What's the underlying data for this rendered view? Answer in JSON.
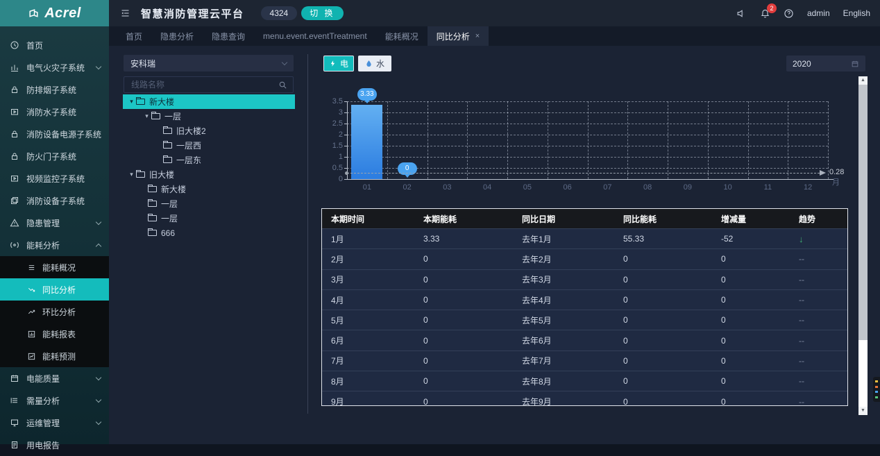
{
  "header": {
    "logo_text": "Acrel",
    "title": "智慧消防管理云平台",
    "badge": "4324",
    "switch_label": "切 换",
    "notification_count": "2",
    "user": "admin",
    "language": "English"
  },
  "tabs": [
    {
      "label": "首页",
      "active": false
    },
    {
      "label": "隐患分析",
      "active": false
    },
    {
      "label": "隐患查询",
      "active": false
    },
    {
      "label": "menu.event.eventTreatment",
      "active": false
    },
    {
      "label": "能耗概况",
      "active": false
    },
    {
      "label": "同比分析",
      "active": true,
      "closable": true
    }
  ],
  "sidebar": {
    "items": [
      {
        "key": "home",
        "label": "首页",
        "icon": "home"
      },
      {
        "key": "electrical-fire",
        "label": "电气火灾子系统",
        "icon": "chart",
        "arrow": "down"
      },
      {
        "key": "smoke-control",
        "label": "防排烟子系统",
        "icon": "lock"
      },
      {
        "key": "fire-water",
        "label": "消防水子系统",
        "icon": "video"
      },
      {
        "key": "fire-power",
        "label": "消防设备电源子系统",
        "icon": "lock"
      },
      {
        "key": "fire-door",
        "label": "防火门子系统",
        "icon": "lock"
      },
      {
        "key": "video-monitor",
        "label": "视频监控子系统",
        "icon": "video"
      },
      {
        "key": "fire-equipment",
        "label": "消防设备子系统",
        "icon": "copy"
      },
      {
        "key": "hazard-mgmt",
        "label": "隐患管理",
        "icon": "warning",
        "arrow": "down"
      },
      {
        "key": "energy-analysis",
        "label": "能耗分析",
        "icon": "energy",
        "arrow": "up",
        "expanded": true,
        "children": [
          {
            "key": "energy-overview",
            "label": "能耗概况",
            "icon": "list"
          },
          {
            "key": "yoy-analysis",
            "label": "同比分析",
            "icon": "trend-down",
            "active": true
          },
          {
            "key": "mom-analysis",
            "label": "环比分析",
            "icon": "trend-up"
          },
          {
            "key": "energy-report",
            "label": "能耗报表",
            "icon": "bar-chart"
          },
          {
            "key": "energy-forecast",
            "label": "能耗预测",
            "icon": "line-chart"
          }
        ]
      },
      {
        "key": "power-quality",
        "label": "电能质量",
        "icon": "calendar",
        "arrow": "down"
      },
      {
        "key": "demand-analysis",
        "label": "需量分析",
        "icon": "rows",
        "arrow": "down"
      },
      {
        "key": "ops-mgmt",
        "label": "运维管理",
        "icon": "monitor",
        "arrow": "down"
      },
      {
        "key": "power-report",
        "label": "用电报告",
        "icon": "report"
      }
    ]
  },
  "tree_panel": {
    "select_value": "安科瑞",
    "search_placeholder": "线路名称",
    "nodes": [
      {
        "label": "新大楼",
        "depth": 0,
        "caret": true,
        "selected": true
      },
      {
        "label": "一层",
        "depth": 1,
        "caret": true
      },
      {
        "label": "旧大楼2",
        "depth": 2
      },
      {
        "label": "一层西",
        "depth": 2
      },
      {
        "label": "一层东",
        "depth": 2
      },
      {
        "label": "旧大楼",
        "depth": 0,
        "caret": true
      },
      {
        "label": "新大楼",
        "depth": 1
      },
      {
        "label": "一层",
        "depth": 1
      },
      {
        "label": "一层",
        "depth": 1
      },
      {
        "label": "666",
        "depth": 1
      }
    ]
  },
  "toolbar": {
    "electric_label": "电",
    "water_label": "水",
    "year": "2020"
  },
  "chart_data": {
    "type": "bar",
    "title": "",
    "categories": [
      "01",
      "02",
      "03",
      "04",
      "05",
      "06",
      "07",
      "08",
      "09",
      "10",
      "11",
      "12"
    ],
    "values": [
      3.33,
      0,
      0,
      0,
      0,
      0,
      0,
      0,
      0,
      0,
      0,
      0
    ],
    "pin_labels": [
      {
        "index": 0,
        "label": "3.33"
      },
      {
        "index": 1,
        "label": "0"
      }
    ],
    "markline": {
      "value": 0.28,
      "label": "0.28"
    },
    "xlabel": "月",
    "ylabel": "",
    "ylim": [
      0,
      3.5
    ],
    "ytick_step": 0.5,
    "grid": true,
    "legend": "none"
  },
  "table": {
    "headers": [
      "本期时间",
      "本期能耗",
      "同比日期",
      "同比能耗",
      "增减量",
      "趋势"
    ],
    "rows": [
      {
        "period": "1月",
        "current": "3.33",
        "compare_date": "去年1月",
        "compare": "55.33",
        "delta": "-52",
        "trend": "down"
      },
      {
        "period": "2月",
        "current": "0",
        "compare_date": "去年2月",
        "compare": "0",
        "delta": "0",
        "trend": "flat"
      },
      {
        "period": "3月",
        "current": "0",
        "compare_date": "去年3月",
        "compare": "0",
        "delta": "0",
        "trend": "flat"
      },
      {
        "period": "4月",
        "current": "0",
        "compare_date": "去年4月",
        "compare": "0",
        "delta": "0",
        "trend": "flat"
      },
      {
        "period": "5月",
        "current": "0",
        "compare_date": "去年5月",
        "compare": "0",
        "delta": "0",
        "trend": "flat"
      },
      {
        "period": "6月",
        "current": "0",
        "compare_date": "去年6月",
        "compare": "0",
        "delta": "0",
        "trend": "flat"
      },
      {
        "period": "7月",
        "current": "0",
        "compare_date": "去年7月",
        "compare": "0",
        "delta": "0",
        "trend": "flat"
      },
      {
        "period": "8月",
        "current": "0",
        "compare_date": "去年8月",
        "compare": "0",
        "delta": "0",
        "trend": "flat"
      },
      {
        "period": "9月",
        "current": "0",
        "compare_date": "去年9月",
        "compare": "0",
        "delta": "0",
        "trend": "flat"
      }
    ]
  },
  "colors": {
    "accent_teal": "#14bcbc",
    "sidebar_teal": "#2d8789",
    "bar_top": "#63b0f2",
    "bar_bottom": "#2b7ce0",
    "pin_blue": "#4aa3f0",
    "trend_green": "#3fae71",
    "notification_red": "#e23d3d",
    "background": "#1b2334"
  }
}
